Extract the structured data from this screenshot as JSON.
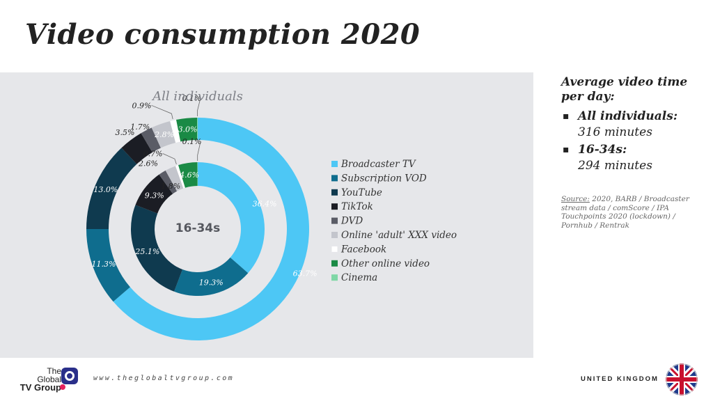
{
  "title": "Video consumption 2020",
  "side_panel": {
    "heading": "Average video time per day:",
    "items": [
      {
        "label": "All individuals:",
        "value": "316 minutes"
      },
      {
        "label": "16-34s:",
        "value": "294 minutes"
      }
    ],
    "source_label": "Source:",
    "source_text": "2020, BARB / Broadcaster stream data / comScore / IPA Touchpoints 2020 (lockdown) / Pornhub  / Rentrak"
  },
  "footer": {
    "logo_line1": "The",
    "logo_line2": "Global",
    "logo_line3": "TV Group",
    "website": "www.theglobaltvgroup.com",
    "country": "UNITED KINGDOM"
  },
  "chart_data": {
    "type": "donut",
    "rings": [
      {
        "name": "All individuals",
        "label": "All individuals",
        "values": [
          63.7,
          11.3,
          13.0,
          3.5,
          1.7,
          2.8,
          0.9,
          3.0,
          0.1
        ],
        "labels": [
          "63.7%",
          "11.3%",
          "13.0%",
          "3.5%",
          "1.7%",
          "2.8%",
          "0.9%",
          "3.0%",
          "0.1%"
        ]
      },
      {
        "name": "16-34s",
        "label": "16-34s",
        "values": [
          36.4,
          19.3,
          25.1,
          9.3,
          1.8,
          2.6,
          0.7,
          4.6,
          0.1
        ],
        "labels": [
          "36.4%",
          "19.3%",
          "25.1%",
          "9.3%",
          "1.8%",
          "2.6%",
          "0.7%",
          "4.6%",
          "0.1%"
        ]
      }
    ],
    "categories": [
      "Broadcaster TV",
      "Subscription VOD",
      "YouTube",
      "TikTok",
      "DVD",
      "Online 'adult' XXX video",
      "Facebook",
      "Other online video",
      "Cinema"
    ],
    "colors": [
      "#4dc7f5",
      "#0f6d8e",
      "#0f3a4f",
      "#1b1d24",
      "#5a5c66",
      "#c3c5cc",
      "#ffffff",
      "#1a8a45",
      "#7fd7a6"
    ],
    "legend_position": "right"
  }
}
